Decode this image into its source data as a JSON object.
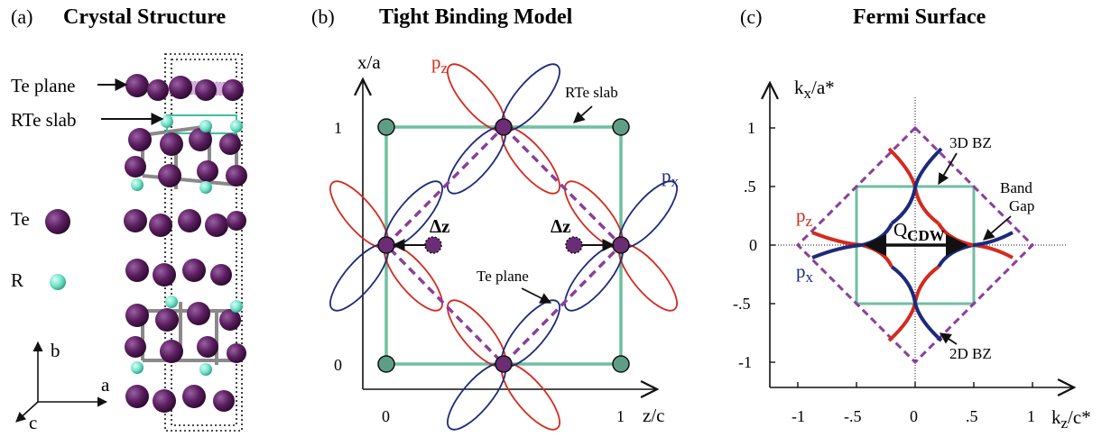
{
  "colors": {
    "te_purple": "#5a1e5e",
    "r_teal": "#7fe0cc",
    "slab_green": "#6fbfa0",
    "node_green": "#5f9e86",
    "red_orbital": "#d42a1e",
    "blue_orbital": "#1d2a7a",
    "dashed_purple": "#8a3f9a",
    "black": "#111111"
  },
  "panel_a": {
    "label": "(a)",
    "title": "Crystal Structure",
    "te_plane_label": "Te plane",
    "rte_slab_label": "RTe slab",
    "legend_te": "Te",
    "legend_r": "R",
    "axis_b": "b",
    "axis_a": "a",
    "axis_c": "c"
  },
  "panel_b": {
    "label": "(b)",
    "title": "Tight Binding Model",
    "xaxis": "z/c",
    "yaxis": "x/a",
    "xtick_0": "0",
    "xtick_1": "1",
    "ytick_0": "0",
    "ytick_1": "1",
    "pz_main": "p",
    "pz_sub": "z",
    "px_main": "p",
    "px_sub": "x",
    "rte_slab_label": "RTe slab",
    "te_plane_label": "Te plane",
    "delta_z": "Δz"
  },
  "panel_c": {
    "label": "(c)",
    "title": "Fermi Surface",
    "xaxis_main": "k",
    "xaxis_sub": "z",
    "xaxis_tail": "/c*",
    "yaxis_main": "k",
    "yaxis_sub": "x",
    "yaxis_tail": "/a*",
    "xticks": [
      "-1",
      "-.5",
      "0",
      ".5",
      "1"
    ],
    "yticks": [
      "1",
      ".5",
      "0",
      "-.5",
      "-1"
    ],
    "bz3d": "3D BZ",
    "bz2d": "2D BZ",
    "band_gap_line1": "Band",
    "band_gap_line2": "Gap",
    "qcdw_main": "Q",
    "qcdw_sub": "CDW",
    "pz_main": "p",
    "pz_sub": "z",
    "px_main": "p",
    "px_sub": "x"
  }
}
